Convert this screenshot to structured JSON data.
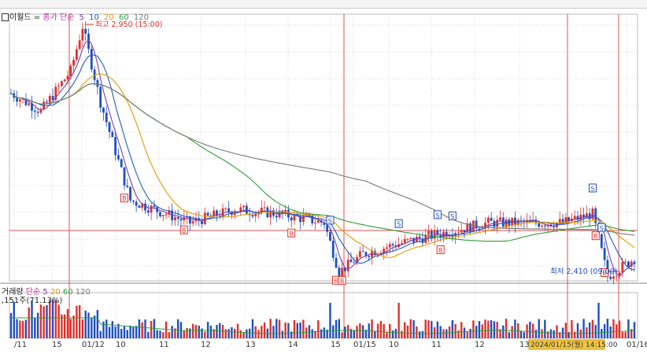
{
  "legend": {
    "name": "이월드",
    "price_label": "종가 단순",
    "ma_items": [
      {
        "label": "5",
        "color": "#7a3fb0"
      },
      {
        "label": "10",
        "color": "#1f5fbf"
      },
      {
        "label": "20",
        "color": "#e59a00"
      },
      {
        "label": "60",
        "color": "#2f9e3a"
      },
      {
        "label": "120",
        "color": "#777777"
      }
    ]
  },
  "volume_legend": {
    "name": "거래량",
    "label": "단순",
    "ma_items": [
      {
        "label": "5",
        "color": "#7a3fb0"
      },
      {
        "label": "20",
        "color": "#e59a00"
      },
      {
        "label": "60",
        "color": "#2f9e3a"
      },
      {
        "label": "120",
        "color": "#777777"
      }
    ],
    "value_text": ",151주(71.13%)"
  },
  "annotations": {
    "high": "최고 2,950 (15:00)",
    "low": "최저 2,410 (09:00)",
    "cursor_time": "2024/01/15(월) 14:15:00"
  },
  "colors": {
    "up": "#e0302a",
    "down": "#1f4fbf",
    "grid": "#d9d9d9",
    "vline": "#e05050",
    "hline": "#e05050"
  },
  "chart_data": {
    "type": "candlestick",
    "x_tick_labels": [
      "/11",
      "15",
      "01/12",
      "10",
      "11",
      "12",
      "13",
      "14",
      "15",
      "01/15",
      "10",
      "11",
      "12",
      "13",
      "01/16"
    ],
    "price_range": [
      2380,
      2970
    ],
    "high_value": 2950,
    "low_value": 2410,
    "signals": [
      {
        "type": "S",
        "index": 107
      },
      {
        "type": "S",
        "index": 130
      },
      {
        "type": "S",
        "index": 143
      },
      {
        "type": "S",
        "index": 148
      },
      {
        "type": "S",
        "index": 195
      },
      {
        "type": "S",
        "index": 198
      },
      {
        "type": "B",
        "index": 38
      },
      {
        "type": "B",
        "index": 58
      },
      {
        "type": "B",
        "index": 94
      },
      {
        "type": "B",
        "index": 109
      },
      {
        "type": "B",
        "index": 111
      },
      {
        "type": "B",
        "index": 144
      },
      {
        "type": "B",
        "index": 196
      },
      {
        "type": "B",
        "index": 199
      }
    ]
  }
}
